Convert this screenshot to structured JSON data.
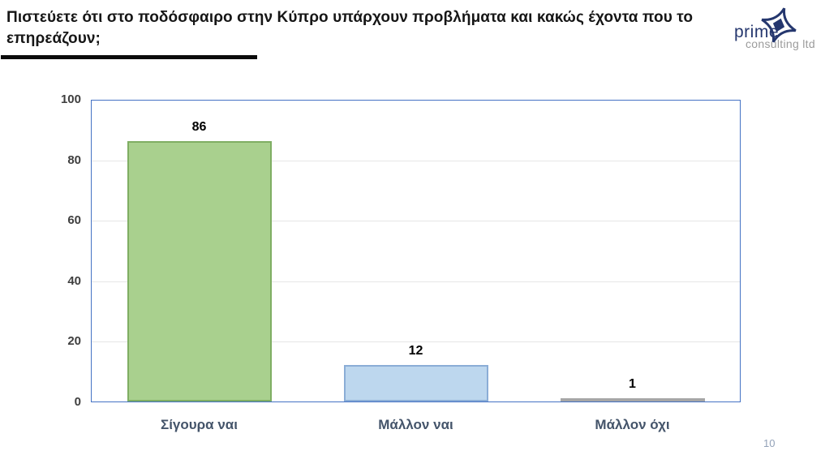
{
  "title": "Πιστεύετε ότι στο ποδόσφαιρο στην Κύπρο υπάρχουν προβλήματα και κακώς έχοντα που  το επηρεάζουν;",
  "logo": {
    "icon": "four-point-star-icon",
    "name_top": "prime",
    "name_bottom": "consulting ltd",
    "navy": "#25376e",
    "gray": "#9b9b9b"
  },
  "page_number": "10",
  "chart_data": {
    "type": "bar",
    "title": "",
    "xlabel": "",
    "ylabel": "",
    "categories": [
      "Σίγουρα ναι",
      "Μάλλον ναι",
      "Μάλλον όχι"
    ],
    "values": [
      86,
      12,
      1
    ],
    "data_labels": [
      "86",
      "12",
      "1"
    ],
    "bar_styles": [
      {
        "fill": "#a9d08e",
        "border": "#7fae63"
      },
      {
        "fill": "#bdd7ee",
        "border": "#8badd6"
      },
      {
        "fill": "#a6a6a6",
        "border": "#a6a6a6"
      }
    ],
    "ylim": [
      0,
      100
    ],
    "yticks": [
      0,
      20,
      40,
      60,
      80,
      100
    ],
    "grid": true,
    "legend": "none",
    "colors": {
      "plot_border": "#4472c4",
      "gridline": "#e6e6e6",
      "tick_label": "#3f3f3f",
      "category_label": "#44546a",
      "data_label": "#000000"
    }
  }
}
